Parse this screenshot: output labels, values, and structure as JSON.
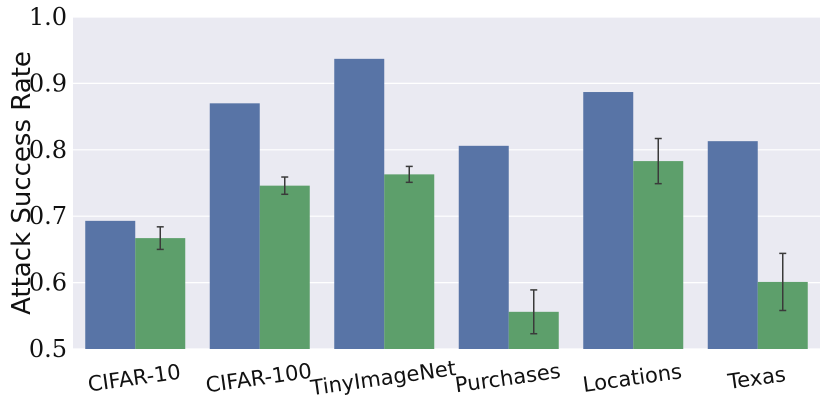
{
  "chart_data": {
    "type": "bar",
    "categories": [
      "CIFAR-10",
      "CIFAR-100",
      "TinyImageNet",
      "Purchases",
      "Locations",
      "Texas"
    ],
    "series": [
      {
        "color": "#5874a6",
        "values": [
          0.693,
          0.87,
          0.937,
          0.806,
          0.887,
          0.813
        ]
      },
      {
        "color": "#5d9f6b",
        "values": [
          0.667,
          0.746,
          0.763,
          0.556,
          0.783,
          0.601
        ],
        "error": [
          0.017,
          0.013,
          0.012,
          0.033,
          0.034,
          0.043
        ]
      }
    ],
    "ylabel": "Attack Success Rate",
    "ylim": [
      0.5,
      1.0
    ],
    "yticks": [
      "0.5",
      "0.6",
      "0.7",
      "0.8",
      "0.9",
      "1.0"
    ],
    "grid": true,
    "background": "#eaeaf2"
  }
}
